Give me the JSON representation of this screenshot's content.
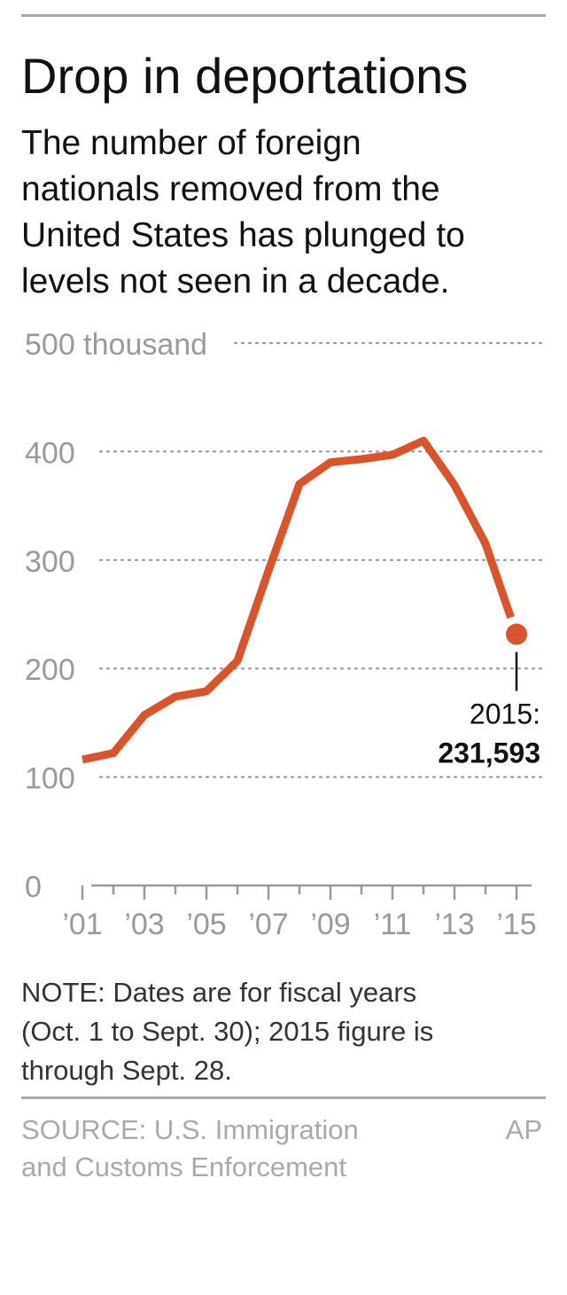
{
  "title": "Drop in deportations",
  "subtitle_lines": [
    "The number of foreign",
    "nationals removed from the",
    "United States has plunged to",
    "levels not seen in a decade."
  ],
  "note_lines": [
    "NOTE: Dates are for fiscal years",
    "(Oct. 1 to Sept. 30); 2015 figure is",
    "through Sept. 28."
  ],
  "source_lines": [
    "SOURCE: U.S. Immigration",
    "and Customs Enforcement"
  ],
  "credit": "AP",
  "colors": {
    "line": "#d9542c",
    "grid": "#9a9a9a",
    "axis_text": "#999999",
    "text": "#111111"
  },
  "chart_data": {
    "type": "line",
    "x": [
      2001,
      2002,
      2003,
      2004,
      2005,
      2006,
      2007,
      2008,
      2009,
      2010,
      2011,
      2012,
      2013,
      2014,
      2015
    ],
    "values": [
      116,
      122,
      157,
      174,
      179,
      207,
      290,
      370,
      390,
      393,
      397,
      410,
      369,
      315,
      231.593
    ],
    "ylim": [
      0,
      500
    ],
    "yticks": [
      0,
      100,
      200,
      300,
      400,
      500
    ],
    "ytick_labels": [
      "0",
      "100",
      "200",
      "300",
      "400",
      "500 thousand"
    ],
    "xtick_labels": [
      "’01",
      "’03",
      "’05",
      "’07",
      "’09",
      "’11",
      "’13",
      "’15"
    ],
    "grid": "dotted horizontal",
    "annotation": {
      "year_label": "2015:",
      "value_label": "231,593"
    }
  }
}
